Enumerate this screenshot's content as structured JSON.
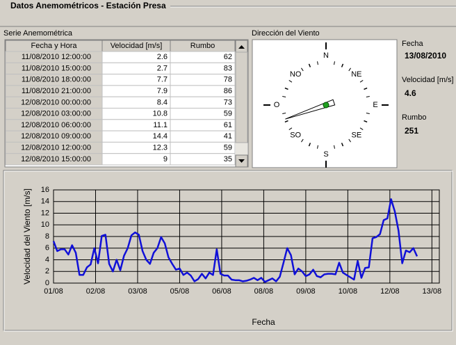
{
  "window": {
    "title": "Datos Anemométricos - Estación Presa"
  },
  "series_table": {
    "title": "Serie Anemométrica",
    "headers": [
      "Fecha y Hora",
      "Velocidad [m/s]",
      "Rumbo"
    ],
    "rows": [
      [
        "11/08/2010  12:00:00",
        2.6,
        62
      ],
      [
        "11/08/2010  15:00:00",
        2.7,
        83
      ],
      [
        "11/08/2010  18:00:00",
        7.7,
        78
      ],
      [
        "11/08/2010  21:00:00",
        7.9,
        86
      ],
      [
        "12/08/2010  00:00:00",
        8.4,
        73
      ],
      [
        "12/08/2010  03:00:00",
        10.8,
        59
      ],
      [
        "12/08/2010  06:00:00",
        11.1,
        61
      ],
      [
        "12/08/2010  09:00:00",
        14.4,
        41
      ],
      [
        "12/08/2010  12:00:00",
        12.3,
        59
      ],
      [
        "12/08/2010  15:00:00",
        9,
        35
      ]
    ]
  },
  "compass": {
    "title": "Dirección del Viento",
    "labels": [
      "N",
      "NE",
      "E",
      "SE",
      "S",
      "SO",
      "O",
      "NO"
    ]
  },
  "current": {
    "fecha_label": "Fecha",
    "fecha": "13/08/2010",
    "velocidad_label": "Velocidad [m/s]",
    "velocidad": 4.6,
    "rumbo_label": "Rumbo",
    "rumbo": 251
  },
  "chart_data": {
    "type": "line",
    "y_label": "Velocidad del Viento [m/s]",
    "x_label": "Fecha",
    "color": "#1010d8",
    "x": [
      0,
      3,
      6,
      9,
      12,
      15,
      18,
      21,
      24,
      27,
      30,
      33,
      36,
      39,
      42,
      45,
      48,
      51,
      54,
      57,
      60,
      63,
      66,
      69,
      72,
      75,
      78,
      81,
      84,
      87,
      90,
      93,
      96,
      99,
      102,
      105,
      108,
      111,
      114,
      117,
      120,
      123,
      126,
      129,
      132,
      135,
      138,
      141,
      144,
      147,
      150,
      153,
      156,
      159,
      162,
      165,
      168,
      171,
      174,
      177,
      180,
      183,
      186,
      189,
      192,
      195,
      198,
      201,
      204,
      207,
      210,
      213,
      216,
      219,
      222,
      225,
      228,
      231,
      234,
      237,
      240,
      243,
      246,
      249,
      252,
      255,
      258,
      261,
      264,
      267,
      270,
      273,
      276,
      279,
      282,
      285,
      288,
      291,
      294
    ],
    "values": [
      7.2,
      5.5,
      5.8,
      5.8,
      4.9,
      6.5,
      5.2,
      1.4,
      1.4,
      2.7,
      3.2,
      6.0,
      3.4,
      8.1,
      8.3,
      3.3,
      2.0,
      4.0,
      2.2,
      4.7,
      6.0,
      8.2,
      8.7,
      8.3,
      5.5,
      4.0,
      3.3,
      5.2,
      6.0,
      7.9,
      6.8,
      4.4,
      3.3,
      2.3,
      2.5,
      1.4,
      1.8,
      1.3,
      0.3,
      0.7,
      1.6,
      0.8,
      1.8,
      1.4,
      5.8,
      1.6,
      1.3,
      1.3,
      0.6,
      0.5,
      0.5,
      0.3,
      0.4,
      0.6,
      0.9,
      0.5,
      0.9,
      0.2,
      0.5,
      0.8,
      0.3,
      1.1,
      3.5,
      6.0,
      4.8,
      1.5,
      2.5,
      2.0,
      1.2,
      1.5,
      2.3,
      1.2,
      1.0,
      1.5,
      1.6,
      1.6,
      1.5,
      3.5,
      1.8,
      1.4,
      1.0,
      0.6,
      3.8,
      0.9,
      2.6,
      2.7,
      7.7,
      7.9,
      8.4,
      10.8,
      11.1,
      14.4,
      12.3,
      9,
      3.4,
      5.6,
      5.3,
      6.0,
      4.6
    ],
    "xlim": [
      0,
      312
    ],
    "xticks": [
      {
        "value": 0,
        "label": "01/08"
      },
      {
        "value": 34,
        "label": "02/08"
      },
      {
        "value": 68,
        "label": "03/08"
      },
      {
        "value": 102,
        "label": "05/08"
      },
      {
        "value": 136,
        "label": "06/08"
      },
      {
        "value": 170,
        "label": "08/08"
      },
      {
        "value": 204,
        "label": "09/08"
      },
      {
        "value": 238,
        "label": "10/08"
      },
      {
        "value": 272,
        "label": "12/08"
      },
      {
        "value": 306,
        "label": "13/08"
      }
    ],
    "ylim": [
      0,
      16
    ],
    "yticks": [
      0,
      2,
      4,
      6,
      8,
      10,
      12,
      14,
      16
    ],
    "grid": true
  }
}
